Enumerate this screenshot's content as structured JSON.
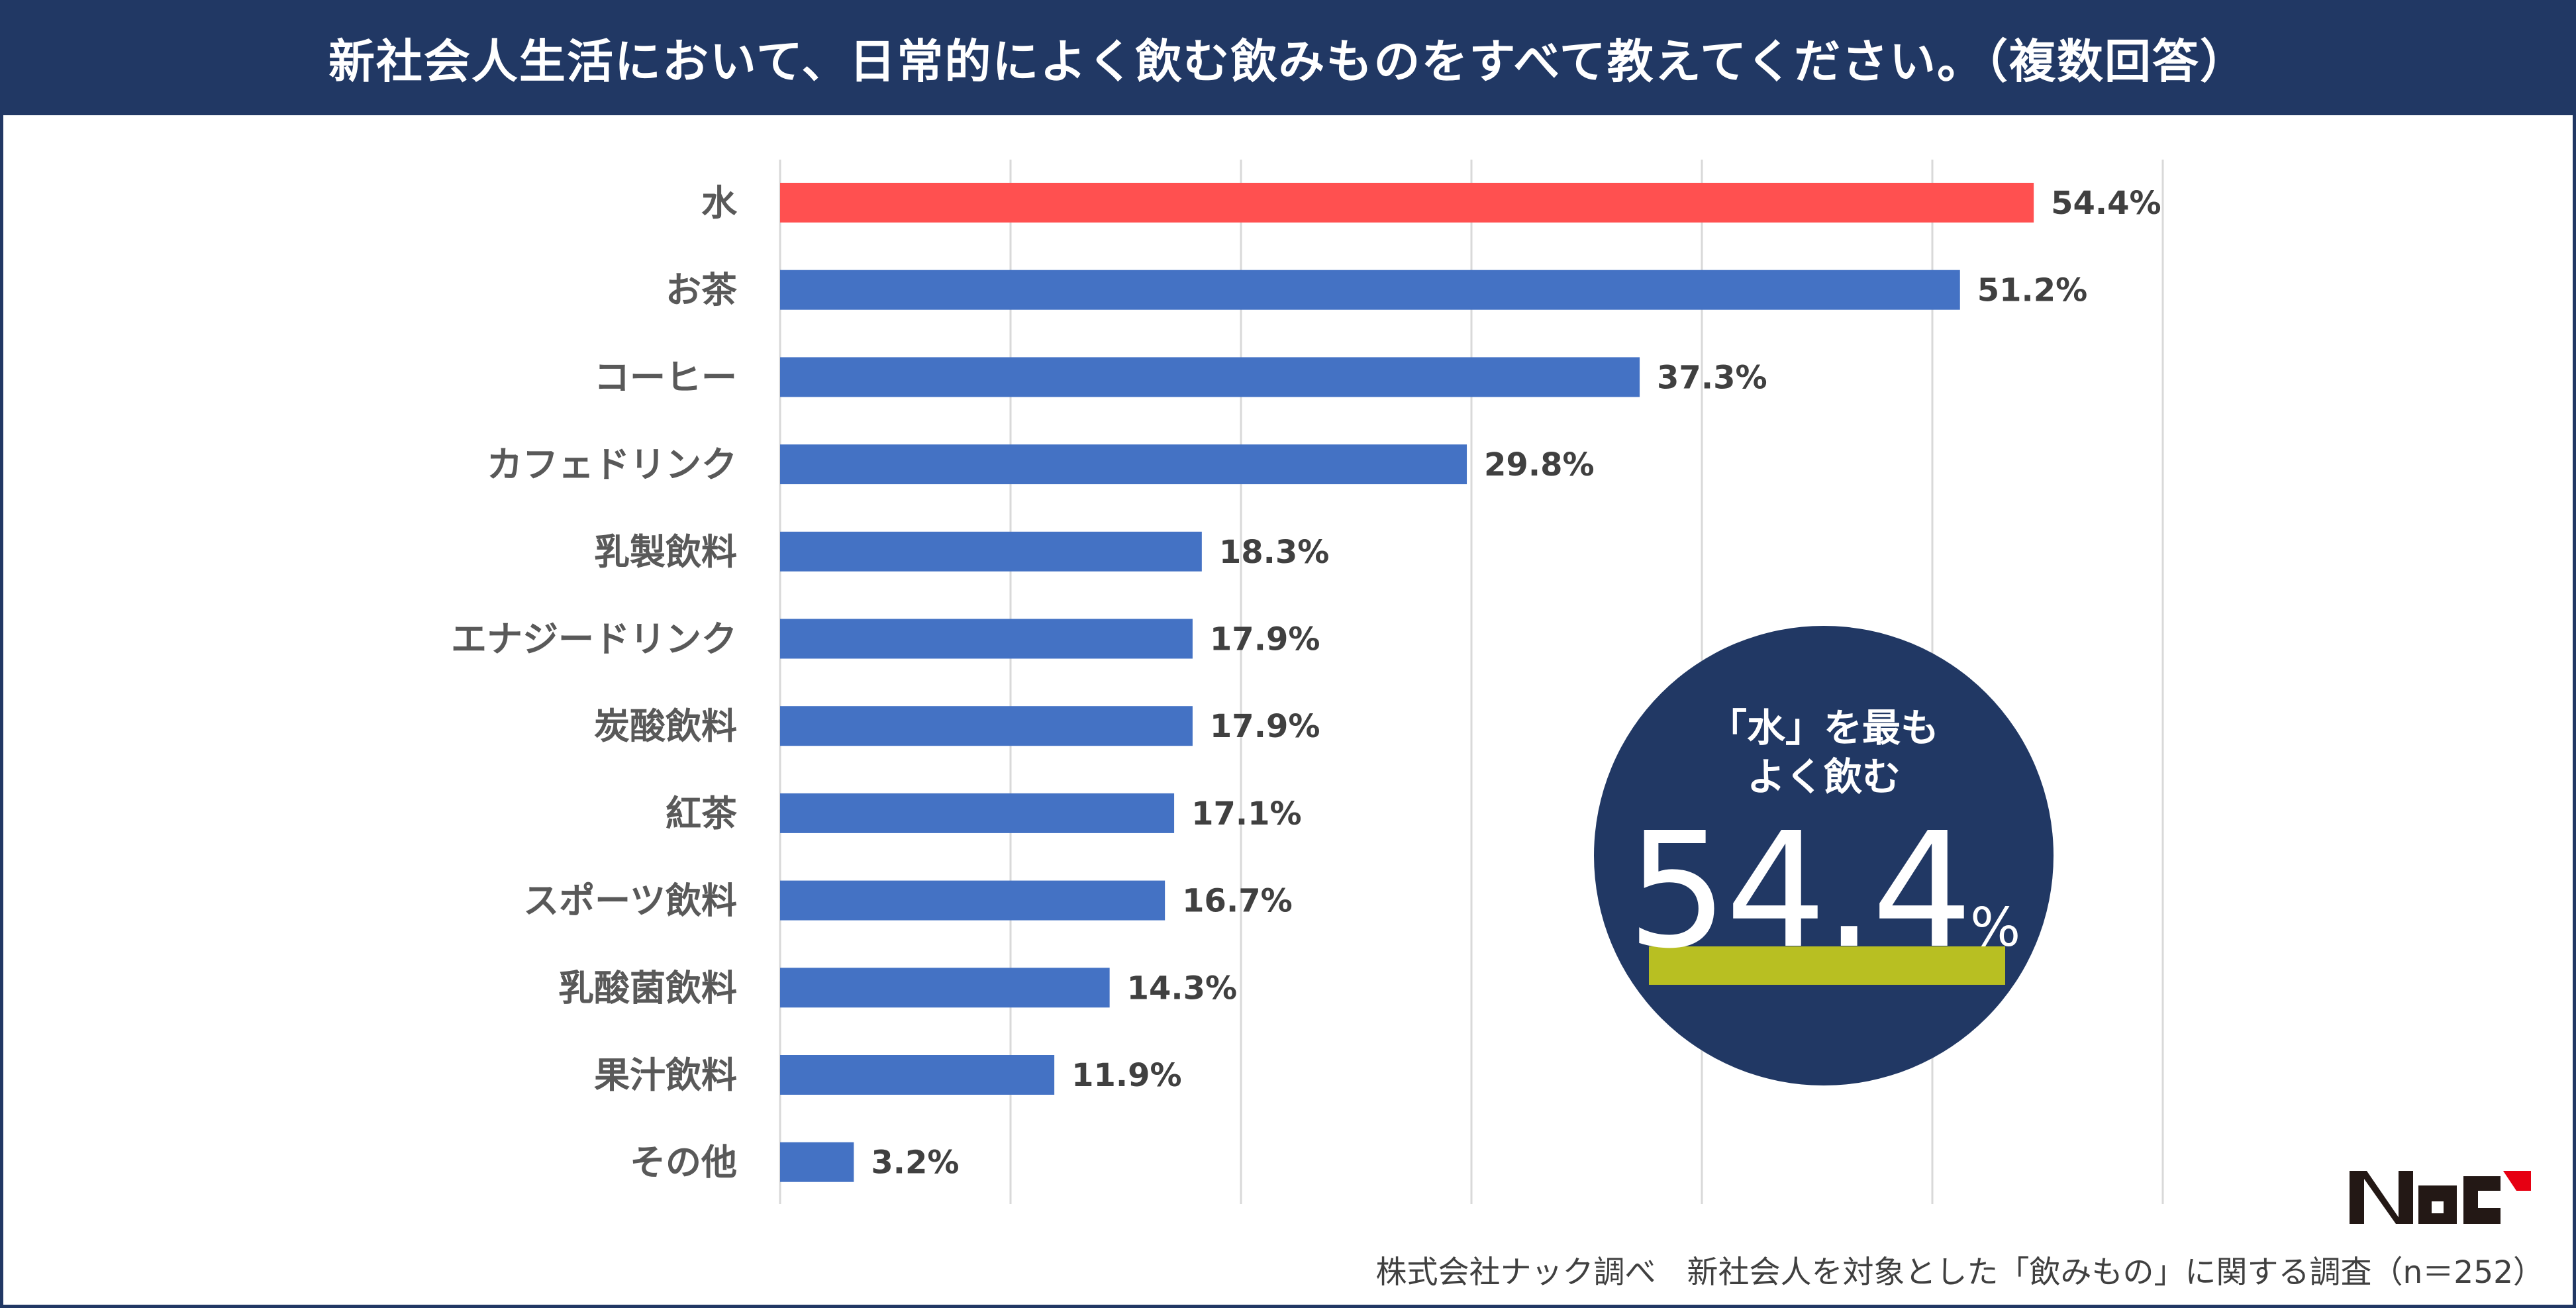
{
  "title": "新社会人生活において、日常的によく飲む飲みものをすべて教えてください。（複数回答）",
  "chart_data": {
    "type": "bar",
    "orientation": "horizontal",
    "categories": [
      "水",
      "お茶",
      "コーヒー",
      "カフェドリンク",
      "乳製飲料",
      "エナジードリンク",
      "炭酸飲料",
      "紅茶",
      "スポーツ飲料",
      "乳酸菌飲料",
      "果汁飲料",
      "その他"
    ],
    "values": [
      54.4,
      51.2,
      37.3,
      29.8,
      18.3,
      17.9,
      17.9,
      17.1,
      16.7,
      14.3,
      11.9,
      3.2
    ],
    "value_labels": [
      "54.4%",
      "51.2%",
      "37.3%",
      "29.8%",
      "18.3%",
      "17.9%",
      "17.9%",
      "17.1%",
      "16.7%",
      "14.3%",
      "11.9%",
      "3.2%"
    ],
    "xlim": [
      0,
      60
    ],
    "grid": true,
    "unit": "%",
    "colors": {
      "highlight": "#ff5050",
      "default": "#4472c4"
    }
  },
  "callout": {
    "line1": "「水」を最も",
    "line2": "よく飲む",
    "number": "54.4",
    "unit": "%",
    "circle_color": "#213864",
    "underline_color": "#b8bf22"
  },
  "logo": "NAC",
  "footer": "株式会社ナック調べ　新社会人を対象とした「飲みもの」に関する調査（n＝252）"
}
